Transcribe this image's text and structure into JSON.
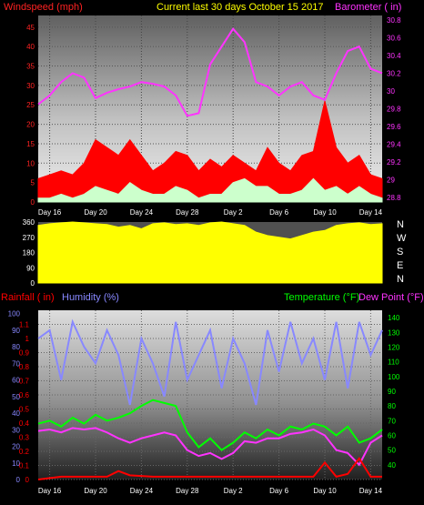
{
  "header": {
    "left": "Windspeed (mph)",
    "center": "Current last 30 days October 15 2017",
    "right": "Barometer ( in)"
  },
  "dir_letters": [
    "N",
    "W",
    "S",
    "E",
    "N"
  ],
  "lower_header": {
    "rain": "Rainfall ( in)",
    "humidity": "Humidity (%)",
    "temperature": "Temperature (°F)",
    "dewpoint": "Dew Point (°F)"
  },
  "colors": {
    "wind_speed": "#ff0000",
    "wind_gust": "#ccffcc",
    "barometer": "#ff33ff",
    "direction": "#ffff00",
    "rain": "#ff0000",
    "humidity": "#8888ff",
    "temperature": "#00ff00",
    "dewpoint": "#ff33ff",
    "title": "#ffff00",
    "wind_axis": "#ff2222",
    "baro_axis": "#ff33ff"
  },
  "chart_data": [
    {
      "id": "wind_baro",
      "type": "area",
      "title": "Current last 30 days October 15 2017",
      "x": {
        "ticks": [
          "Day 16",
          "Day 20",
          "Day 24",
          "Day 28",
          "Day 2",
          "Day 6",
          "Day 10",
          "Day 14"
        ],
        "tick_days": [
          1,
          5,
          9,
          13,
          17,
          21,
          25,
          29
        ],
        "range": [
          0,
          30
        ]
      },
      "y_left": {
        "label": "Windspeed (mph)",
        "ticks": [
          0,
          5,
          10,
          15,
          20,
          25,
          30,
          35,
          40,
          45
        ],
        "range": [
          0,
          48
        ]
      },
      "y_right": {
        "label": "Barometer ( in)",
        "ticks": [
          28.8,
          29,
          29.2,
          29.4,
          29.6,
          29.8,
          30,
          30.2,
          30.4,
          30.6,
          30.8
        ],
        "range": [
          28.75,
          30.85
        ]
      },
      "series": [
        {
          "name": "Barometer",
          "axis": "right",
          "x": [
            0,
            1,
            2,
            3,
            4,
            5,
            6,
            7,
            8,
            9,
            10,
            11,
            12,
            13,
            14,
            15,
            16,
            17,
            18,
            19,
            20,
            21,
            22,
            23,
            24,
            25,
            26,
            27,
            28,
            29,
            30
          ],
          "values": [
            29.85,
            29.95,
            30.1,
            30.2,
            30.15,
            29.92,
            29.98,
            30.02,
            30.05,
            30.1,
            30.08,
            30.05,
            29.95,
            29.72,
            29.75,
            30.3,
            30.5,
            30.7,
            30.55,
            30.1,
            30.05,
            29.95,
            30.05,
            30.1,
            29.95,
            29.9,
            30.2,
            30.45,
            30.5,
            30.25,
            30.2
          ]
        },
        {
          "name": "Wind gust",
          "axis": "left",
          "x": [
            0,
            1,
            2,
            3,
            4,
            5,
            6,
            7,
            8,
            9,
            10,
            11,
            12,
            13,
            14,
            15,
            16,
            17,
            18,
            19,
            20,
            21,
            22,
            23,
            24,
            25,
            26,
            27,
            28,
            29,
            30
          ],
          "values": [
            6,
            7,
            8,
            7,
            10,
            16,
            14,
            12,
            16,
            12,
            8,
            10,
            13,
            12,
            8,
            11,
            9,
            12,
            10,
            8,
            14,
            10,
            8,
            12,
            13,
            26,
            14,
            10,
            12,
            7,
            6
          ]
        },
        {
          "name": "Wind speed",
          "axis": "left",
          "x": [
            0,
            1,
            2,
            3,
            4,
            5,
            6,
            7,
            8,
            9,
            10,
            11,
            12,
            13,
            14,
            15,
            16,
            17,
            18,
            19,
            20,
            21,
            22,
            23,
            24,
            25,
            26,
            27,
            28,
            29,
            30
          ],
          "values": [
            1,
            1,
            2,
            1,
            2,
            4,
            3,
            2,
            5,
            3,
            2,
            2,
            4,
            3,
            1,
            2,
            2,
            5,
            6,
            4,
            4,
            2,
            2,
            3,
            6,
            3,
            4,
            2,
            4,
            2,
            1
          ]
        }
      ]
    },
    {
      "id": "wind_direction",
      "type": "area",
      "x": {
        "ticks": [],
        "range": [
          0,
          30
        ]
      },
      "y": {
        "ticks": [
          0,
          90,
          180,
          270,
          360
        ],
        "range": [
          0,
          360
        ]
      },
      "series": [
        {
          "name": "Wind direction",
          "x": [
            0,
            1,
            2,
            3,
            4,
            5,
            6,
            7,
            8,
            9,
            10,
            11,
            12,
            13,
            14,
            15,
            16,
            17,
            18,
            19,
            20,
            21,
            22,
            23,
            24,
            25,
            26,
            27,
            28,
            29,
            30
          ],
          "values": [
            340,
            350,
            355,
            360,
            355,
            350,
            345,
            330,
            340,
            320,
            350,
            355,
            345,
            350,
            340,
            355,
            360,
            350,
            340,
            300,
            280,
            270,
            260,
            280,
            300,
            310,
            340,
            350,
            355,
            345,
            350
          ]
        }
      ]
    },
    {
      "id": "rain_hum_temp",
      "type": "line",
      "x": {
        "ticks": [
          "Day 16",
          "Day 20",
          "Day 24",
          "Day 28",
          "Day 2",
          "Day 6",
          "Day 10",
          "Day 14"
        ],
        "tick_days": [
          1,
          5,
          9,
          13,
          17,
          21,
          25,
          29
        ],
        "range": [
          0,
          30
        ]
      },
      "y_rain": {
        "label": "Rainfall ( in)",
        "ticks": [
          0,
          0.1,
          0.2,
          0.3,
          0.4,
          0.5,
          0.6,
          0.7,
          0.8,
          0.9,
          1,
          1.1
        ],
        "range": [
          0,
          1.2
        ]
      },
      "y_humidity": {
        "label": "Humidity (%)",
        "ticks": [
          0,
          10,
          20,
          30,
          40,
          50,
          60,
          70,
          80,
          90,
          100
        ],
        "range": [
          0,
          102
        ]
      },
      "y_temp": {
        "label": "Temperature (°F)",
        "ticks": [
          40,
          50,
          60,
          70,
          80,
          90,
          100,
          110,
          120,
          130,
          140
        ],
        "range": [
          30,
          145
        ]
      },
      "series": [
        {
          "name": "Humidity",
          "axis": "humidity",
          "x": [
            0,
            1,
            2,
            3,
            4,
            5,
            6,
            7,
            8,
            9,
            10,
            11,
            12,
            13,
            14,
            15,
            16,
            17,
            18,
            19,
            20,
            21,
            22,
            23,
            24,
            25,
            26,
            27,
            28,
            29,
            30
          ],
          "values": [
            85,
            90,
            60,
            95,
            80,
            70,
            90,
            75,
            45,
            85,
            70,
            50,
            95,
            60,
            75,
            90,
            55,
            85,
            70,
            45,
            90,
            65,
            95,
            70,
            85,
            60,
            95,
            55,
            95,
            75,
            90
          ]
        },
        {
          "name": "Temperature",
          "axis": "temp",
          "x": [
            0,
            1,
            2,
            3,
            4,
            5,
            6,
            7,
            8,
            9,
            10,
            11,
            12,
            13,
            14,
            15,
            16,
            17,
            18,
            19,
            20,
            21,
            22,
            23,
            24,
            25,
            26,
            27,
            28,
            29,
            30
          ],
          "values": [
            68,
            70,
            66,
            72,
            68,
            74,
            70,
            72,
            75,
            80,
            84,
            82,
            80,
            62,
            52,
            58,
            50,
            55,
            62,
            58,
            64,
            60,
            66,
            64,
            68,
            66,
            60,
            66,
            55,
            58,
            64
          ]
        },
        {
          "name": "Dew Point",
          "axis": "temp",
          "x": [
            0,
            1,
            2,
            3,
            4,
            5,
            6,
            7,
            8,
            9,
            10,
            11,
            12,
            13,
            14,
            15,
            16,
            17,
            18,
            19,
            20,
            21,
            22,
            23,
            24,
            25,
            26,
            27,
            28,
            29,
            30
          ],
          "values": [
            63,
            64,
            62,
            65,
            64,
            65,
            62,
            58,
            55,
            58,
            60,
            62,
            60,
            50,
            46,
            48,
            44,
            48,
            56,
            55,
            58,
            58,
            61,
            62,
            64,
            60,
            50,
            48,
            40,
            55,
            60
          ]
        },
        {
          "name": "Rainfall",
          "axis": "rain",
          "x": [
            0,
            2,
            4,
            6,
            7,
            8,
            10,
            12,
            14,
            16,
            18,
            20,
            22,
            24,
            25,
            26,
            27,
            28,
            29,
            30
          ],
          "values": [
            0,
            0.02,
            0.02,
            0.02,
            0.06,
            0.03,
            0.02,
            0.02,
            0.02,
            0.02,
            0.02,
            0.02,
            0.02,
            0.02,
            0.12,
            0.02,
            0.04,
            0.15,
            0.02,
            0.02
          ]
        }
      ]
    }
  ]
}
